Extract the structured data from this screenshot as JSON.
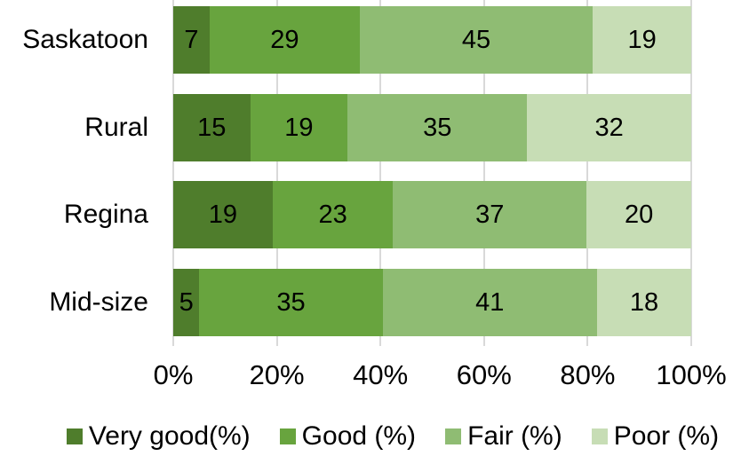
{
  "chart_data": {
    "type": "bar",
    "orientation": "horizontal",
    "stacked": true,
    "stacked_to_100_percent": true,
    "title": "",
    "xlabel": "",
    "ylabel": "",
    "categories": [
      "Saskatoon",
      "Rural",
      "Regina",
      "Mid-size"
    ],
    "series": [
      {
        "name": "Very good(%)",
        "color": "#4F7D2C",
        "values": [
          7,
          15,
          19,
          5
        ]
      },
      {
        "name": "Good (%)",
        "color": "#68A43E",
        "values": [
          29,
          19,
          23,
          35
        ]
      },
      {
        "name": "Fair (%)",
        "color": "#8FBC73",
        "values": [
          45,
          35,
          37,
          41
        ]
      },
      {
        "name": "Poor (%)",
        "color": "#C7DDB5",
        "values": [
          19,
          32,
          20,
          18
        ]
      }
    ],
    "x_axis": {
      "min": 0,
      "max": 100,
      "tick_labels": [
        "0%",
        "20%",
        "40%",
        "60%",
        "80%",
        "100%"
      ]
    },
    "legend": {
      "position": "bottom",
      "entries": [
        "Very good(%)",
        "Good (%)",
        "Fair (%)",
        "Poor (%)"
      ]
    },
    "gridlines": {
      "vertical": true,
      "color": "#D9D9D9"
    },
    "value_label_color": "#000000",
    "background_color": "#FFFFFF"
  }
}
